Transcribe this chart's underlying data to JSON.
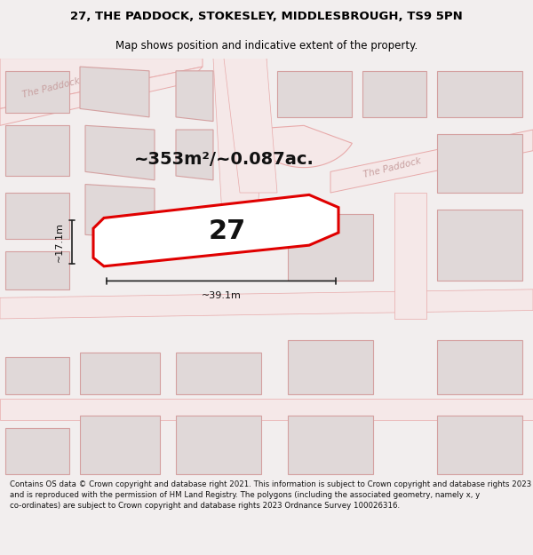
{
  "title": "27, THE PADDOCK, STOKESLEY, MIDDLESBROUGH, TS9 5PN",
  "subtitle": "Map shows position and indicative extent of the property.",
  "footer": "Contains OS data © Crown copyright and database right 2021. This information is subject to Crown copyright and database rights 2023 and is reproduced with the permission of HM Land Registry. The polygons (including the associated geometry, namely x, y co-ordinates) are subject to Crown copyright and database rights 2023 Ordnance Survey 100026316.",
  "area_label": "~353m²/~0.087ac.",
  "width_label": "~39.1m",
  "height_label": "~17.1m",
  "number_label": "27",
  "bg_color": "#f2eeee",
  "map_bg": "#f5f0f0",
  "building_fill": "#e0d8d8",
  "building_edge": "#d4a0a0",
  "road_fill": "#f5e8e8",
  "road_edge": "#e8aaaa",
  "highlight_red": "#e00000",
  "road_label_color": "#c8a0a0",
  "dim_color": "#222222",
  "title_fontsize": 9.5,
  "subtitle_fontsize": 8.5,
  "area_fontsize": 14,
  "number_fontsize": 22,
  "dim_fontsize": 8,
  "footer_fontsize": 6.2
}
